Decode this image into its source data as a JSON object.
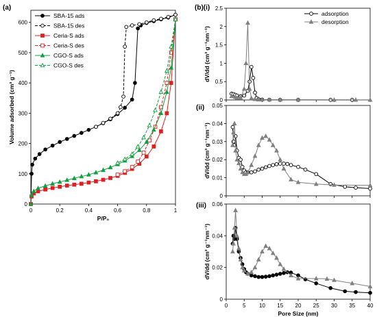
{
  "panel_labels": {
    "a": "(a)",
    "bi": "(b)(i)",
    "bii": "(ii)",
    "biii": "(iii)"
  },
  "colors": {
    "sba": "#000000",
    "ceria": "#e02020",
    "cgo": "#10a040",
    "ads": "#000000",
    "des": "#808080"
  },
  "chart_data": [
    {
      "type": "line",
      "panel": "a",
      "xlabel": "P/P₀",
      "ylabel": "Volume adsorbed (cm³ g⁻¹)",
      "xlim": [
        0,
        1
      ],
      "ylim": [
        0,
        640
      ],
      "xticks": [
        0,
        0.2,
        0.4,
        0.6,
        0.8,
        1
      ],
      "xtick_labels": [
        "0",
        "0.2",
        "0.4",
        "0.6",
        "0.8",
        "1"
      ],
      "yticks": [
        0,
        100,
        200,
        300,
        400,
        500,
        600
      ],
      "legend_position": "top-left",
      "series": [
        {
          "name": "SBA-15 ads",
          "color": "#000000",
          "marker": "circle-filled",
          "dash": false,
          "x": [
            0,
            0.005,
            0.01,
            0.03,
            0.06,
            0.1,
            0.15,
            0.2,
            0.25,
            0.3,
            0.35,
            0.4,
            0.45,
            0.5,
            0.55,
            0.6,
            0.65,
            0.7,
            0.72,
            0.74,
            0.76,
            0.8,
            0.85,
            0.9,
            0.95,
            1.0
          ],
          "y": [
            0,
            100,
            130,
            150,
            165,
            180,
            193,
            205,
            215,
            225,
            235,
            245,
            255,
            267,
            280,
            297,
            318,
            345,
            400,
            580,
            590,
            598,
            604,
            610,
            616,
            625
          ]
        },
        {
          "name": "SBA-15 des",
          "color": "#000000",
          "marker": "circle-open",
          "dash": true,
          "x": [
            1.0,
            0.95,
            0.9,
            0.85,
            0.8,
            0.75,
            0.7,
            0.66,
            0.65,
            0.64,
            0.62,
            0.6,
            0.55,
            0.5,
            0.45
          ],
          "y": [
            625,
            618,
            612,
            607,
            600,
            594,
            590,
            585,
            520,
            355,
            320,
            300,
            282,
            268,
            255
          ]
        },
        {
          "name": "Ceria-S ads",
          "color": "#e02020",
          "marker": "square-filled",
          "dash": false,
          "x": [
            0,
            0.005,
            0.02,
            0.05,
            0.1,
            0.15,
            0.2,
            0.25,
            0.3,
            0.35,
            0.4,
            0.45,
            0.5,
            0.55,
            0.6,
            0.65,
            0.7,
            0.75,
            0.8,
            0.85,
            0.9,
            0.94,
            0.97,
            1.0
          ],
          "y": [
            0,
            25,
            35,
            42,
            48,
            53,
            57,
            61,
            64,
            67,
            71,
            75,
            80,
            86,
            93,
            103,
            116,
            133,
            157,
            190,
            240,
            300,
            400,
            610
          ]
        },
        {
          "name": "Ceria-S des",
          "color": "#e02020",
          "marker": "square-open",
          "dash": true,
          "x": [
            1.0,
            0.97,
            0.94,
            0.9,
            0.86,
            0.82,
            0.78,
            0.74,
            0.7,
            0.65,
            0.6
          ],
          "y": [
            610,
            500,
            400,
            320,
            255,
            210,
            170,
            140,
            122,
            108,
            97
          ]
        },
        {
          "name": "CGO-S ads",
          "color": "#10a040",
          "marker": "triangle-filled",
          "dash": false,
          "x": [
            0,
            0.005,
            0.02,
            0.05,
            0.1,
            0.15,
            0.2,
            0.25,
            0.3,
            0.35,
            0.4,
            0.45,
            0.5,
            0.55,
            0.6,
            0.65,
            0.7,
            0.75,
            0.8,
            0.85,
            0.9,
            0.94,
            0.97,
            1.0
          ],
          "y": [
            0,
            30,
            42,
            52,
            60,
            67,
            73,
            79,
            85,
            91,
            97,
            104,
            112,
            121,
            131,
            143,
            158,
            178,
            205,
            245,
            300,
            370,
            450,
            610
          ]
        },
        {
          "name": "CGO-S des",
          "color": "#10a040",
          "marker": "triangle-open",
          "dash": true,
          "x": [
            1.0,
            0.97,
            0.94,
            0.9,
            0.86,
            0.82,
            0.78,
            0.74,
            0.7,
            0.65,
            0.6
          ],
          "y": [
            610,
            520,
            440,
            370,
            310,
            260,
            220,
            190,
            165,
            148,
            136
          ]
        }
      ]
    },
    {
      "type": "line",
      "panel": "b(i)",
      "xlabel": "",
      "ylabel": "dV/dd (cm³ g⁻¹nm⁻¹)",
      "xlim": [
        0,
        40
      ],
      "ylim": [
        0,
        2.5
      ],
      "yticks": [
        0,
        0.5,
        1,
        1.5,
        2,
        2.5
      ],
      "legend_position": "top-right",
      "series": [
        {
          "name": "adsorption",
          "color": "#000000",
          "marker": "circle-open",
          "x": [
            1.5,
            2,
            2.5,
            3,
            4,
            5,
            6,
            6.5,
            7,
            7.5,
            8,
            8.5,
            9,
            10,
            12,
            15,
            20,
            29,
            35
          ],
          "y": [
            0.17,
            0.16,
            0.14,
            0.12,
            0.1,
            0.12,
            0.25,
            0.5,
            0.9,
            0.6,
            0.2,
            0.05,
            0.02,
            0.01,
            0.005,
            0.003,
            0.003,
            0.002,
            0.002
          ]
        },
        {
          "name": "desorption",
          "color": "#808080",
          "marker": "triangle-filled",
          "x": [
            1.5,
            2.5,
            3,
            4,
            5,
            5.5,
            6,
            6.5,
            7,
            8,
            9,
            10,
            12,
            15,
            20,
            30,
            36,
            40
          ],
          "y": [
            0.1,
            0.08,
            0.06,
            0.06,
            0.3,
            1.0,
            2.1,
            0.3,
            0.05,
            0.02,
            0.01,
            0.008,
            0.006,
            0.005,
            0.004,
            0.003,
            0.003,
            0.003
          ]
        }
      ]
    },
    {
      "type": "line",
      "panel": "b(ii)",
      "xlabel": "",
      "ylabel": "dV/dd (cm³ g⁻¹nm⁻¹)",
      "xlim": [
        0,
        40
      ],
      "ylim": [
        0,
        0.05
      ],
      "yticks": [
        0,
        0.01,
        0.02,
        0.03,
        0.04,
        0.05
      ],
      "series": [
        {
          "name": "adsorption",
          "color": "#000000",
          "marker": "circle-open",
          "x": [
            1.8,
            2,
            2.3,
            2.6,
            3,
            3.5,
            4,
            4.5,
            5,
            5.5,
            6,
            7,
            8,
            9,
            10,
            11,
            12,
            13,
            14,
            15,
            16,
            17,
            18,
            20,
            22,
            25,
            29,
            33,
            36,
            40
          ],
          "y": [
            0.038,
            0.03,
            0.028,
            0.033,
            0.025,
            0.021,
            0.02,
            0.016,
            0.014,
            0.013,
            0.013,
            0.013,
            0.0135,
            0.0145,
            0.015,
            0.0158,
            0.0165,
            0.017,
            0.0175,
            0.0178,
            0.0178,
            0.0176,
            0.017,
            0.016,
            0.0145,
            0.012,
            0.0065,
            0.005,
            0.0045,
            0.004
          ]
        },
        {
          "name": "desorption",
          "color": "#808080",
          "marker": "triangle-filled",
          "x": [
            1.8,
            2,
            2.3,
            2.6,
            3,
            3.5,
            4,
            4.5,
            5,
            5.5,
            6,
            7,
            8,
            9,
            10,
            11,
            12,
            13,
            14,
            15,
            16,
            18,
            20,
            25,
            30,
            40
          ],
          "y": [
            0.028,
            0.035,
            0.04,
            0.025,
            0.02,
            0.018,
            0.015,
            0.013,
            0.012,
            0.012,
            0.013,
            0.017,
            0.022,
            0.028,
            0.032,
            0.033,
            0.031,
            0.028,
            0.025,
            0.02,
            0.015,
            0.009,
            0.0075,
            0.0065,
            0.006,
            0.0058
          ]
        }
      ]
    },
    {
      "type": "line",
      "panel": "b(iii)",
      "xlabel": "Pore Size (nm)",
      "ylabel": "dV/dd (cm³ g⁻¹nm⁻¹)",
      "xlim": [
        0,
        40
      ],
      "ylim": [
        0,
        0.06
      ],
      "xticks": [
        0,
        5,
        10,
        15,
        20,
        25,
        30,
        35,
        40
      ],
      "yticks": [
        0,
        0.02,
        0.04,
        0.06
      ],
      "series": [
        {
          "name": "adsorption",
          "color": "#000000",
          "marker": "circle-filled",
          "x": [
            1.8,
            2,
            2.3,
            2.6,
            3,
            3.5,
            4,
            4.5,
            5,
            5.5,
            6,
            7,
            8,
            9,
            10,
            11,
            12,
            13,
            14,
            15,
            16,
            17,
            18,
            20,
            22,
            25,
            29,
            33,
            36,
            40
          ],
          "y": [
            0.035,
            0.04,
            0.038,
            0.045,
            0.038,
            0.03,
            0.026,
            0.022,
            0.019,
            0.017,
            0.016,
            0.015,
            0.0145,
            0.014,
            0.014,
            0.0142,
            0.0145,
            0.015,
            0.0155,
            0.016,
            0.0165,
            0.017,
            0.0168,
            0.015,
            0.0125,
            0.01,
            0.007,
            0.005,
            0.0045,
            0.004
          ]
        },
        {
          "name": "desorption",
          "color": "#808080",
          "marker": "triangle-filled",
          "x": [
            1.8,
            2,
            2.3,
            2.6,
            3,
            3.5,
            4,
            4.5,
            5,
            6,
            7,
            8,
            9,
            10,
            11,
            12,
            13,
            14,
            15,
            16,
            18,
            20,
            25,
            28,
            30,
            35,
            40
          ],
          "y": [
            0.03,
            0.035,
            0.045,
            0.056,
            0.04,
            0.032,
            0.025,
            0.02,
            0.018,
            0.016,
            0.017,
            0.02,
            0.025,
            0.03,
            0.0335,
            0.032,
            0.029,
            0.026,
            0.022,
            0.019,
            0.015,
            0.013,
            0.013,
            0.0128,
            0.012,
            0.01,
            0.008
          ]
        }
      ]
    }
  ]
}
